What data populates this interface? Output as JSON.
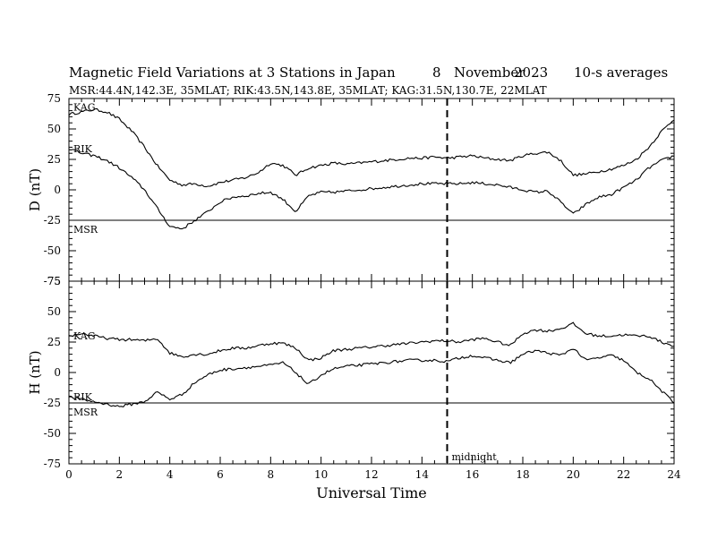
{
  "title": "Magnetic Field Variations at 3 Stations in Japan",
  "date_day": "8",
  "date_month": "November",
  "date_year": "2023",
  "averaging": "10-s averages",
  "subtitle": "MSR:44.4N,142.3E, 35MLAT;  RIK:43.5N,143.8E, 35MLAT;  KAG:31.5N,130.7E, 22MLAT",
  "midnight_label": "midnight",
  "chart_data": [
    {
      "type": "line",
      "panel": "D",
      "ylabel": "D (nT)",
      "xlabel": "Universal Time",
      "xlim": [
        0,
        24
      ],
      "ylim": [
        -75,
        75
      ],
      "x_ticks": [
        "0",
        "2",
        "4",
        "6",
        "8",
        "10",
        "12",
        "14",
        "16",
        "18",
        "20",
        "22",
        "24"
      ],
      "y_ticks": [
        "75",
        "50",
        "25",
        "0",
        "-25",
        "-50",
        "-75"
      ],
      "marker_x": 15,
      "x": [
        0,
        0.5,
        1,
        1.5,
        2,
        2.5,
        3,
        3.5,
        4,
        4.5,
        5,
        5.5,
        6,
        6.5,
        7,
        7.5,
        8,
        8.5,
        9,
        9.5,
        10,
        10.5,
        11,
        11.5,
        12,
        12.5,
        13,
        13.5,
        14,
        14.5,
        15,
        15.5,
        16,
        16.5,
        17,
        17.5,
        18,
        18.5,
        19,
        19.5,
        20,
        20.5,
        21,
        21.5,
        22,
        22.5,
        23,
        23.5,
        24
      ],
      "series": [
        {
          "name": "KAG",
          "values": [
            62,
            64,
            66,
            64,
            58,
            48,
            35,
            20,
            8,
            4,
            5,
            3,
            6,
            8,
            10,
            14,
            22,
            20,
            12,
            18,
            20,
            22,
            21,
            22,
            23,
            24,
            25,
            26,
            26,
            27,
            26,
            27,
            28,
            26,
            25,
            24,
            28,
            30,
            31,
            24,
            12,
            13,
            15,
            17,
            20,
            25,
            35,
            48,
            58
          ]
        },
        {
          "name": "RIK",
          "values": [
            34,
            30,
            28,
            24,
            18,
            10,
            0,
            -15,
            -30,
            -32,
            -25,
            -18,
            -10,
            -6,
            -5,
            -3,
            -2,
            -8,
            -18,
            -5,
            -2,
            -2,
            -1,
            0,
            1,
            2,
            3,
            4,
            5,
            5,
            5,
            5,
            6,
            5,
            4,
            2,
            0,
            -2,
            -1,
            -10,
            -20,
            -12,
            -6,
            -4,
            2,
            8,
            18,
            24,
            28
          ]
        },
        {
          "name": "MSR",
          "values": [
            -25,
            -25,
            -25,
            -25,
            -25,
            -25,
            -25,
            -25,
            -25,
            -25,
            -25,
            -25,
            -25,
            -25,
            -25,
            -25,
            -25,
            -25,
            -25,
            -25,
            -25,
            -25,
            -25,
            -25,
            -25,
            -25,
            -25,
            -25,
            -25,
            -25,
            -25,
            -25,
            -25,
            -25,
            -25,
            -25,
            -25,
            -25,
            -25,
            -25,
            -25,
            -25,
            -25,
            -25,
            -25,
            -25,
            -25,
            -25,
            -25
          ]
        }
      ]
    },
    {
      "type": "line",
      "panel": "H",
      "ylabel": "H (nT)",
      "xlabel": "Universal Time",
      "xlim": [
        0,
        24
      ],
      "ylim": [
        -75,
        75
      ],
      "x_ticks": [
        "0",
        "2",
        "4",
        "6",
        "8",
        "10",
        "12",
        "14",
        "16",
        "18",
        "20",
        "22",
        "24"
      ],
      "y_ticks": [
        "75",
        "50",
        "25",
        "0",
        "-25",
        "-50",
        "-75"
      ],
      "marker_x": 15,
      "x": [
        0,
        0.5,
        1,
        1.5,
        2,
        2.5,
        3,
        3.5,
        4,
        4.5,
        5,
        5.5,
        6,
        6.5,
        7,
        7.5,
        8,
        8.5,
        9,
        9.5,
        10,
        10.5,
        11,
        11.5,
        12,
        12.5,
        13,
        13.5,
        14,
        14.5,
        15,
        15.5,
        16,
        16.5,
        17,
        17.5,
        18,
        18.5,
        19,
        19.5,
        20,
        20.5,
        21,
        21.5,
        22,
        22.5,
        23,
        23.5,
        24
      ],
      "series": [
        {
          "name": "KAG",
          "values": [
            30,
            32,
            30,
            28,
            27,
            27,
            26,
            28,
            16,
            13,
            15,
            15,
            18,
            20,
            20,
            22,
            24,
            24,
            20,
            10,
            12,
            18,
            19,
            20,
            21,
            22,
            23,
            24,
            25,
            26,
            26,
            25,
            27,
            28,
            25,
            22,
            32,
            35,
            34,
            36,
            40,
            32,
            30,
            30,
            31,
            30,
            30,
            25,
            22
          ]
        },
        {
          "name": "RIK",
          "values": [
            -20,
            -22,
            -24,
            -26,
            -28,
            -26,
            -24,
            -16,
            -22,
            -18,
            -8,
            -2,
            2,
            3,
            4,
            5,
            6,
            8,
            0,
            -10,
            -2,
            3,
            5,
            6,
            7,
            8,
            9,
            10,
            10,
            10,
            9,
            12,
            14,
            12,
            10,
            8,
            15,
            18,
            16,
            14,
            20,
            10,
            12,
            14,
            10,
            0,
            -5,
            -15,
            -25
          ]
        },
        {
          "name": "MSR",
          "values": [
            -25,
            -25,
            -25,
            -25,
            -25,
            -25,
            -25,
            -25,
            -25,
            -25,
            -25,
            -25,
            -25,
            -25,
            -25,
            -25,
            -25,
            -25,
            -25,
            -25,
            -25,
            -25,
            -25,
            -25,
            -25,
            -25,
            -25,
            -25,
            -25,
            -25,
            -25,
            -25,
            -25,
            -25,
            -25,
            -25,
            -25,
            -25,
            -25,
            -25,
            -25,
            -25,
            -25,
            -25,
            -25,
            -25,
            -25,
            -25,
            -25
          ]
        }
      ]
    }
  ]
}
